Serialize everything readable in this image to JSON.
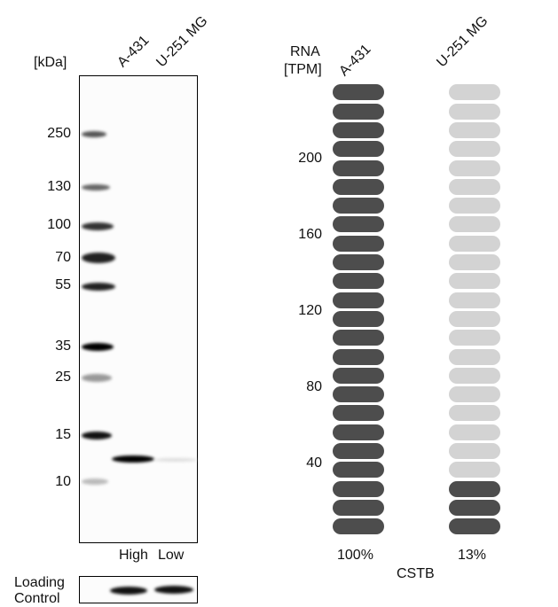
{
  "western_blot": {
    "unit_label": "[kDa]",
    "lanes": [
      "A-431",
      "U-251 MG"
    ],
    "markers": [
      "250",
      "130",
      "100",
      "70",
      "55",
      "35",
      "25",
      "15",
      "10"
    ],
    "lane_levels": [
      "High",
      "Low"
    ],
    "loading_control_label": [
      "Loading",
      "Control"
    ]
  },
  "chart_data": {
    "type": "bar",
    "ylabel": [
      "RNA",
      "[TPM]"
    ],
    "categories": [
      "A-431",
      "U-251 MG"
    ],
    "yticks": [
      "40",
      "80",
      "120",
      "160",
      "200"
    ],
    "ylim": [
      0,
      240
    ],
    "pill_count": 24,
    "filled_pills": [
      24,
      3
    ],
    "percent_labels": [
      "100%",
      "13%"
    ],
    "gene": "CSTB",
    "colors": {
      "filled": "#4d4d4d",
      "empty": "#d3d3d3"
    }
  }
}
